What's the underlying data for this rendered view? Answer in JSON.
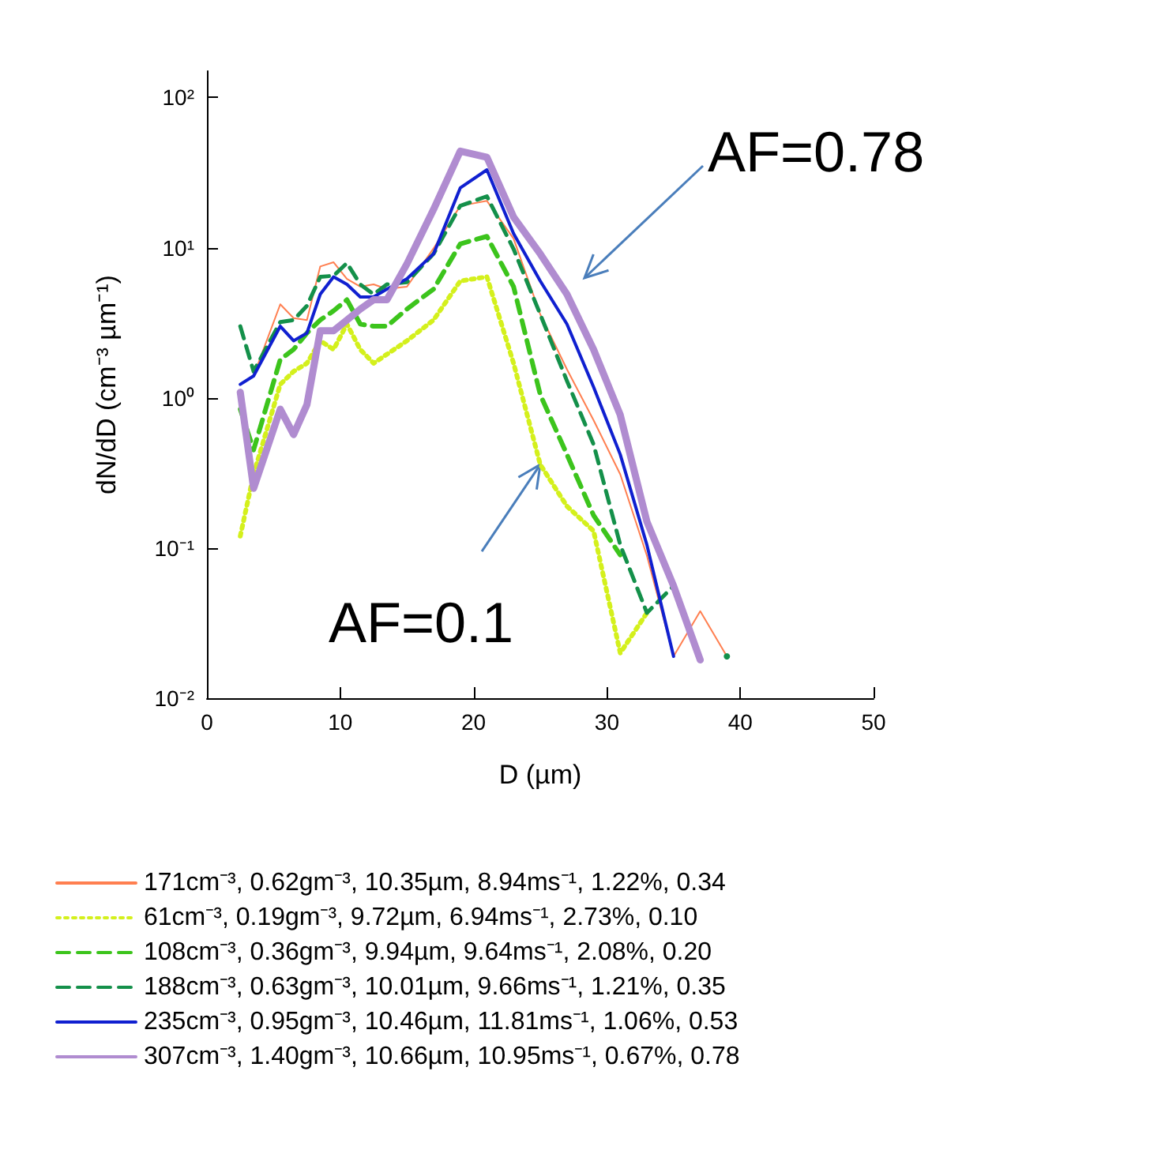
{
  "chart_data": {
    "type": "line",
    "xlabel": "D (µm)",
    "ylabel": "dN/dD (cm⁻³ µm⁻¹)",
    "x": [
      2.5,
      3.5,
      5.5,
      6.5,
      7.5,
      8.5,
      9.5,
      10.5,
      11.5,
      12.5,
      13.5,
      15,
      17,
      19,
      21,
      23,
      25,
      27,
      29,
      31,
      33,
      35,
      37,
      39
    ],
    "series": [
      {
        "name": "171cm⁻³, 0.62gm⁻³, 10.35µm, 8.94ms⁻¹, 1.22%, 0.34",
        "color": "#ff7f50",
        "line_style": "solid",
        "values": [
          1.23,
          1.4,
          4.2,
          3.4,
          3.3,
          7.5,
          8.0,
          6.2,
          5.5,
          5.7,
          5.3,
          5.5,
          9.9,
          19,
          20.5,
          11.5,
          3.6,
          1.55,
          0.71,
          0.31,
          0.089,
          0.019,
          0.038,
          0.019
        ]
      },
      {
        "name": "61cm⁻³, 0.19gm⁻³, 9.72µm, 6.94ms⁻¹, 2.73%, 0.10",
        "color": "#d4f01c",
        "line_style": "dotted",
        "values": [
          0.12,
          0.31,
          1.23,
          1.5,
          1.7,
          2.4,
          2.1,
          3.1,
          2.1,
          1.7,
          1.95,
          2.4,
          3.3,
          6.0,
          6.4,
          1.7,
          0.36,
          0.19,
          0.13,
          0.02,
          0.037,
          null,
          null,
          null
        ]
      },
      {
        "name": "108cm⁻³, 0.36gm⁻³, 9.94µm, 9.64ms⁻¹, 2.08%, 0.20",
        "color": "#3cc41c",
        "line_style": "dashed",
        "values": [
          0.84,
          0.45,
          1.8,
          2.1,
          2.7,
          3.3,
          3.8,
          4.5,
          3.1,
          3.0,
          3.0,
          3.9,
          5.3,
          10.6,
          11.9,
          5.5,
          1.05,
          0.42,
          0.165,
          0.09,
          null,
          null,
          null,
          null
        ]
      },
      {
        "name": "188cm⁻³, 0.63gm⁻³, 10.01µm, 9.66ms⁻¹, 1.21%, 0.35",
        "color": "#14904a",
        "line_style": "dashed",
        "values": [
          3.0,
          1.5,
          3.2,
          3.3,
          4.1,
          6.4,
          6.5,
          7.9,
          5.7,
          4.9,
          5.7,
          5.9,
          9.1,
          19,
          22,
          9.8,
          3.6,
          1.3,
          0.49,
          0.105,
          0.037,
          0.056,
          null,
          0.019
        ]
      },
      {
        "name": "235cm⁻³, 0.95gm⁻³, 10.46µm, 11.81ms⁻¹, 1.06%, 0.53",
        "color": "#1020d0",
        "line_style": "solid",
        "values": [
          1.23,
          1.4,
          3.0,
          2.4,
          2.7,
          4.9,
          6.4,
          5.7,
          4.7,
          4.7,
          5.3,
          6.2,
          9.1,
          25,
          33,
          12.4,
          6.0,
          3.1,
          1.18,
          0.42,
          0.105,
          0.019,
          null,
          null
        ]
      },
      {
        "name": "307cm⁻³, 1.40gm⁻³, 10.66µm, 10.95ms⁻¹, 0.67%, 0.78",
        "color": "#b08cd0",
        "line_style": "solid",
        "values": [
          1.09,
          0.25,
          0.84,
          0.57,
          0.9,
          2.8,
          2.8,
          3.3,
          3.9,
          4.5,
          4.5,
          7.8,
          18,
          44,
          40,
          16,
          9.1,
          4.9,
          2.1,
          0.77,
          0.15,
          0.056,
          0.018,
          null
        ]
      }
    ],
    "xlim": [
      0,
      50
    ],
    "xticks": [
      0,
      10,
      20,
      30,
      40,
      50
    ],
    "ylim": [
      0.01,
      150
    ],
    "log": true,
    "yticks": [
      {
        "value": 0.01,
        "label": "10⁻²"
      },
      {
        "value": 0.1,
        "label": "10⁻¹"
      },
      {
        "value": 1,
        "label": "10⁰"
      },
      {
        "value": 10,
        "label": "10¹"
      },
      {
        "value": 100,
        "label": "10²"
      }
    ],
    "grid": false,
    "legend": "bottom",
    "marker": "none",
    "annotations": [
      "AF=0.78",
      {
        "text": "AF=0.1",
        "x": 25,
        "y": 0.36
      }
    ]
  }
}
